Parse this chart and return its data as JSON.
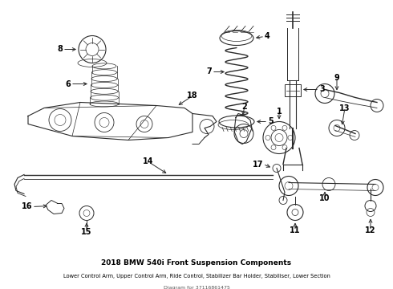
{
  "bg_color": "#ffffff",
  "line_color": "#2a2a2a",
  "label_color": "#000000",
  "title": "2018 BMW 540i Front Suspension Components",
  "subtitle": "Lower Control Arm, Upper Control Arm, Ride Control, Stabilizer Bar Holder, Stabiliser, Lower Section",
  "part_number": "Diagram for 37116861475",
  "figsize": [
    4.9,
    3.6
  ],
  "dpi": 100
}
